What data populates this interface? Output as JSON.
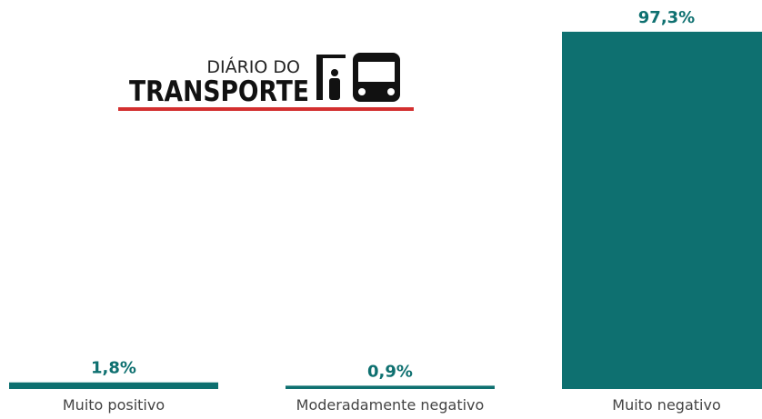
{
  "logo": {
    "line1": "DIÁRIO DO",
    "line2": "TRANSPORTE"
  },
  "chart_data": {
    "type": "bar",
    "categories": [
      "Muito positivo",
      "Moderadamente negativo",
      "Muito negativo"
    ],
    "values": [
      1.8,
      0.9,
      97.3
    ],
    "value_labels": [
      "1,8%",
      "0,9%",
      "97,3%"
    ],
    "color": "#0e7070",
    "ylim": [
      0,
      100
    ]
  }
}
